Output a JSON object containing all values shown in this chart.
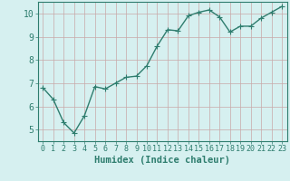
{
  "x": [
    0,
    1,
    2,
    3,
    4,
    5,
    6,
    7,
    8,
    9,
    10,
    11,
    12,
    13,
    14,
    15,
    16,
    17,
    18,
    19,
    20,
    21,
    22,
    23
  ],
  "y": [
    6.8,
    6.3,
    5.3,
    4.85,
    5.6,
    6.85,
    6.75,
    7.0,
    7.25,
    7.3,
    7.75,
    8.6,
    9.3,
    9.25,
    9.9,
    10.05,
    10.15,
    9.85,
    9.2,
    9.45,
    9.45,
    9.8,
    10.05,
    10.3
  ],
  "line_color": "#2e7d6e",
  "marker": "+",
  "marker_color": "#2e7d6e",
  "bg_color": "#d6f0f0",
  "grid_color": "#c8a8a8",
  "axis_color": "#2e7d6e",
  "xlabel": "Humidex (Indice chaleur)",
  "xlabel_fontsize": 7.5,
  "tick_label_color": "#2e7d6e",
  "xlim": [
    -0.5,
    23.5
  ],
  "ylim": [
    4.5,
    10.5
  ],
  "yticks": [
    5,
    6,
    7,
    8,
    9,
    10
  ],
  "xticks": [
    0,
    1,
    2,
    3,
    4,
    5,
    6,
    7,
    8,
    9,
    10,
    11,
    12,
    13,
    14,
    15,
    16,
    17,
    18,
    19,
    20,
    21,
    22,
    23
  ],
  "linewidth": 1.0,
  "markersize": 4
}
